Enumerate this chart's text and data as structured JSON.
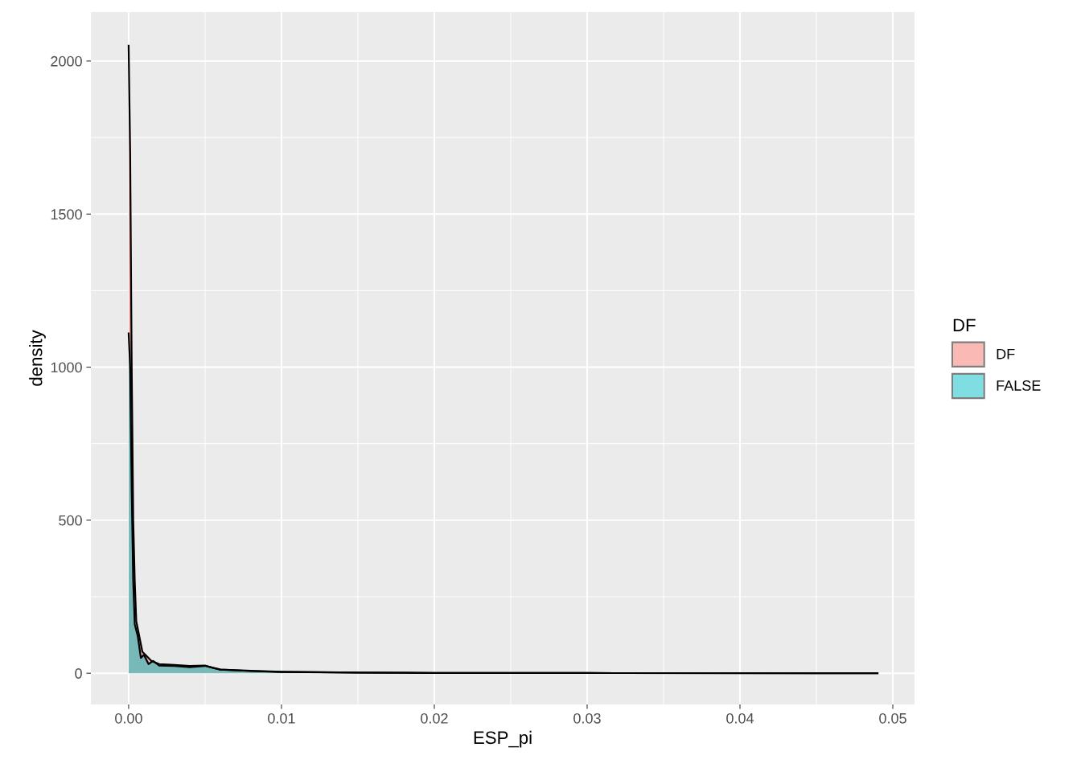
{
  "chart_data": {
    "type": "area",
    "xlabel": "ESP_pi",
    "ylabel": "density",
    "legend_title": "DF",
    "legend": "right",
    "grid": true,
    "xlim": [
      -0.00247,
      0.05142
    ],
    "ylim": [
      -102,
      2160
    ],
    "xticks": [
      {
        "value": 0,
        "label": "0.00"
      },
      {
        "value": 0.01,
        "label": "0.01"
      },
      {
        "value": 0.02,
        "label": "0.02"
      },
      {
        "value": 0.03,
        "label": "0.03"
      },
      {
        "value": 0.04,
        "label": "0.04"
      },
      {
        "value": 0.05,
        "label": "0.05"
      }
    ],
    "yticks": [
      0,
      500,
      1000,
      1500,
      2000
    ],
    "series": [
      {
        "name": "DF",
        "color": "#F8766D",
        "x": [
          0,
          0.0001,
          0.0002,
          0.0003,
          0.0004,
          0.0005,
          0.0007,
          0.0009,
          0.0012,
          0.0015,
          0.002,
          0.003,
          0.004,
          0.005,
          0.0055,
          0.006,
          0.008,
          0.01,
          0.015,
          0.02,
          0.03,
          0.049
        ],
        "values": [
          2050,
          1700,
          1000,
          500,
          300,
          170,
          120,
          70,
          55,
          40,
          30,
          27,
          24,
          25,
          18,
          12,
          8,
          5,
          2,
          1,
          0.5,
          0.3
        ]
      },
      {
        "name": "FALSE",
        "color": "#00BFC4",
        "x": [
          0,
          0.0001,
          0.0002,
          0.0003,
          0.0004,
          0.0006,
          0.0008,
          0.001,
          0.0013,
          0.0016,
          0.002,
          0.003,
          0.004,
          0.005,
          0.006,
          0.008,
          0.01,
          0.015,
          0.02,
          0.03,
          0.049
        ],
        "values": [
          1110,
          1000,
          600,
          300,
          160,
          120,
          50,
          60,
          30,
          40,
          25,
          24,
          20,
          24,
          12,
          7,
          4,
          2,
          1,
          0.5,
          0.3
        ]
      }
    ]
  }
}
